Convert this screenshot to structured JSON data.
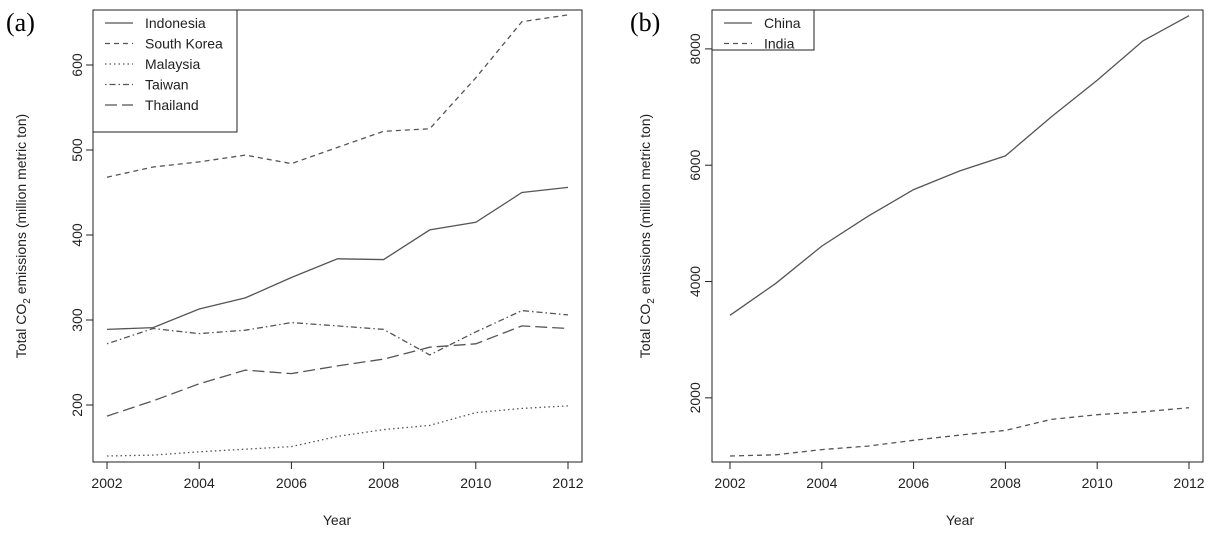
{
  "chart_data": [
    {
      "panel_label": "(a)",
      "type": "line",
      "xlabel": "Year",
      "ylabel_main": "Total CO",
      "ylabel_sub": "2",
      "ylabel_rest": " emissions (million metric ton)",
      "xlim": [
        2002,
        2012
      ],
      "ylim": [
        140,
        660
      ],
      "xticks": [
        2002,
        2004,
        2006,
        2008,
        2010,
        2012
      ],
      "yticks": [
        200,
        300,
        400,
        500,
        600
      ],
      "legend_position": "top-left",
      "x": [
        2002,
        2003,
        2004,
        2005,
        2006,
        2007,
        2008,
        2009,
        2010,
        2011,
        2012
      ],
      "series": [
        {
          "name": "Indonesia",
          "dash": "solid",
          "values": [
            289,
            291,
            313,
            326,
            350,
            372,
            371,
            406,
            415,
            450,
            456
          ]
        },
        {
          "name": "South Korea",
          "dash": "dashed",
          "values": [
            468,
            480,
            486,
            494,
            484,
            503,
            522,
            525,
            585,
            651,
            659
          ]
        },
        {
          "name": "Malaysia",
          "dash": "dotted",
          "values": [
            140,
            141,
            145,
            148,
            151,
            163,
            171,
            176,
            191,
            196,
            199
          ]
        },
        {
          "name": "Taiwan",
          "dash": "dotdash",
          "values": [
            272,
            290,
            284,
            288,
            297,
            293,
            289,
            259,
            286,
            311,
            306
          ]
        },
        {
          "name": "Thailand",
          "dash": "longdash",
          "values": [
            187,
            205,
            225,
            241,
            237,
            246,
            254,
            268,
            272,
            293,
            290
          ]
        }
      ]
    },
    {
      "panel_label": "(b)",
      "type": "line",
      "xlabel": "Year",
      "ylabel_main": "Total CO",
      "ylabel_sub": "2",
      "ylabel_rest": " emissions (million metric ton)",
      "xlim": [
        2002,
        2012
      ],
      "ylim": [
        1000,
        8600
      ],
      "xticks": [
        2002,
        2004,
        2006,
        2008,
        2010,
        2012
      ],
      "yticks": [
        2000,
        4000,
        6000,
        8000
      ],
      "legend_position": "top-left",
      "x": [
        2002,
        2003,
        2004,
        2005,
        2006,
        2007,
        2008,
        2009,
        2010,
        2011,
        2012
      ],
      "series": [
        {
          "name": "China",
          "dash": "solid",
          "values": [
            3420,
            3970,
            4610,
            5120,
            5580,
            5900,
            6160,
            6830,
            7460,
            8140,
            8570
          ]
        },
        {
          "name": "India",
          "dash": "dashed",
          "values": [
            1000,
            1020,
            1110,
            1170,
            1270,
            1360,
            1440,
            1630,
            1710,
            1760,
            1830
          ]
        }
      ]
    }
  ]
}
